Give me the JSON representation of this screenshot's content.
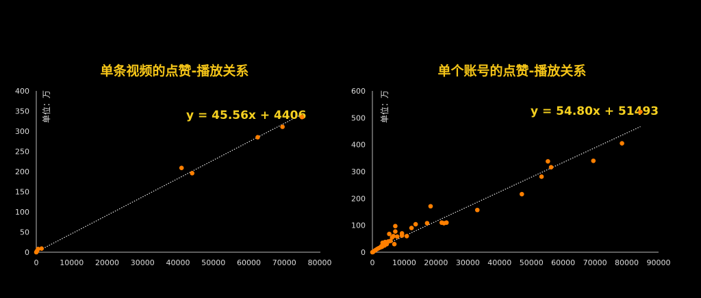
{
  "chart_data": [
    {
      "type": "scatter",
      "title": "单条视频的点赞-播放关系",
      "unit_label": "单位：万",
      "xlabel": "",
      "ylabel": "",
      "xlim": [
        0,
        80000
      ],
      "ylim": [
        0,
        400
      ],
      "xticks": [
        "0",
        "10000",
        "20000",
        "30000",
        "40000",
        "50000",
        "60000",
        "70000",
        "80000"
      ],
      "yticks": [
        "0",
        "50",
        "100",
        "150",
        "200",
        "250",
        "300",
        "350",
        "400"
      ],
      "trendline": {
        "equation": "y = 45.56x + 4406",
        "slope_wan": 0.004556,
        "intercept_wan": 0.4406,
        "x_range": [
          0,
          75000
        ]
      },
      "points": [
        [
          0,
          0
        ],
        [
          200,
          3
        ],
        [
          500,
          8
        ],
        [
          1500,
          9
        ],
        [
          41000,
          209
        ],
        [
          44000,
          196
        ],
        [
          62500,
          285
        ],
        [
          69500,
          311
        ],
        [
          75000,
          335
        ]
      ],
      "marker_color": "#ff7f00"
    },
    {
      "type": "scatter",
      "title": "单个账号的点赞-播放关系",
      "unit_label": "单位：万",
      "xlabel": "",
      "ylabel": "",
      "xlim": [
        0,
        90000
      ],
      "ylim": [
        0,
        600
      ],
      "xticks": [
        "0",
        "10000",
        "20000",
        "30000",
        "40000",
        "50000",
        "60000",
        "70000",
        "80000",
        "90000"
      ],
      "yticks": [
        "0",
        "100",
        "200",
        "300",
        "400",
        "500",
        "600"
      ],
      "trendline": {
        "equation": "y = 54.80x + 51493",
        "slope_wan": 0.00548,
        "intercept_wan": 5.1493,
        "x_range": [
          0,
          84300
        ]
      },
      "points": [
        [
          84300,
          522
        ],
        [
          78500,
          405
        ],
        [
          69500,
          340
        ],
        [
          55200,
          338
        ],
        [
          56200,
          316
        ],
        [
          53200,
          281
        ],
        [
          47000,
          216
        ],
        [
          33000,
          157
        ],
        [
          18300,
          171
        ],
        [
          17200,
          108
        ],
        [
          13600,
          104
        ],
        [
          12300,
          90
        ],
        [
          10800,
          60
        ],
        [
          9300,
          70
        ],
        [
          9300,
          62
        ],
        [
          23300,
          110
        ],
        [
          22500,
          108
        ],
        [
          21800,
          110
        ],
        [
          7200,
          97
        ],
        [
          7200,
          77
        ],
        [
          7800,
          58
        ],
        [
          6600,
          60
        ],
        [
          5300,
          68
        ],
        [
          6900,
          30
        ],
        [
          5700,
          42
        ],
        [
          5000,
          40
        ],
        [
          4000,
          38
        ],
        [
          3200,
          35
        ],
        [
          4500,
          30
        ],
        [
          3800,
          25
        ],
        [
          3000,
          20
        ],
        [
          2500,
          18
        ],
        [
          2000,
          15
        ],
        [
          1500,
          12
        ],
        [
          1000,
          8
        ],
        [
          500,
          4
        ],
        [
          200,
          1
        ],
        [
          0,
          0
        ],
        [
          6200,
          55
        ],
        [
          4200,
          32
        ],
        [
          2800,
          22
        ]
      ],
      "marker_color": "#ff7f00"
    }
  ]
}
